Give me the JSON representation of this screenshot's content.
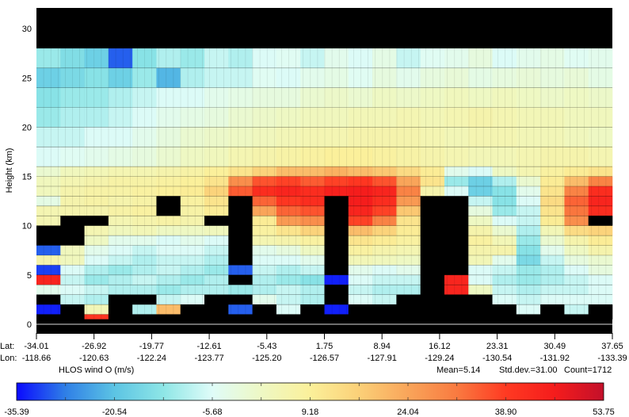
{
  "chart_data": {
    "type": "heatmap",
    "ylabel": "Height (km)",
    "ylim": [
      -0.9,
      32
    ],
    "yticks": [
      "0",
      "5",
      "10",
      "15",
      "20",
      "25",
      "30"
    ],
    "ytick_values": [
      0,
      5,
      10,
      15,
      20,
      25,
      30
    ],
    "x_row_labels": [
      "Lat:",
      "Lon:"
    ],
    "lat_ticks": [
      "-34.01",
      "-26.92",
      "-19.77",
      "-12.61",
      "-5.43",
      "1.75",
      "8.94",
      "16.12",
      "23.31",
      "30.49",
      "37.65"
    ],
    "lon_ticks": [
      "-118.66",
      "-120.63",
      "-122.24",
      "-123.77",
      "-125.20",
      "-126.57",
      "-127.91",
      "-129.24",
      "-130.54",
      "-131.92",
      "-133.39"
    ],
    "invalid_color": "#000000",
    "layer_edges_km": [
      28,
      26,
      24,
      22,
      20,
      18,
      16,
      15,
      14,
      13,
      12,
      11,
      10,
      9,
      8,
      7,
      6,
      5,
      4,
      3,
      2,
      1,
      0.5
    ],
    "values": [
      [
        -12,
        -15,
        -18,
        -30,
        -14,
        -10,
        -12,
        -8,
        -10,
        -6,
        -5,
        -8,
        -4,
        -6,
        -3,
        -8,
        -5,
        -4,
        -2,
        -6,
        -4,
        -3,
        -5,
        -4
      ],
      [
        -18,
        -16,
        -14,
        -18,
        -12,
        -22,
        -10,
        -8,
        -8,
        -5,
        -6,
        -4,
        -3,
        -5,
        -2,
        -4,
        -2,
        -1,
        -3,
        -2,
        -1,
        -2,
        -1,
        -3
      ],
      [
        -14,
        -12,
        -12,
        -10,
        -8,
        -6,
        -6,
        -4,
        -3,
        -2,
        -2,
        0,
        1,
        0,
        2,
        1,
        2,
        3,
        2,
        3,
        2,
        1,
        2,
        1
      ],
      [
        -12,
        -10,
        -10,
        -8,
        -6,
        -4,
        -3,
        -2,
        0,
        1,
        2,
        3,
        3,
        4,
        4,
        5,
        4,
        5,
        6,
        5,
        4,
        4,
        3,
        3
      ],
      [
        -8,
        -8,
        -6,
        -6,
        -4,
        -2,
        0,
        1,
        2,
        3,
        4,
        5,
        5,
        6,
        6,
        6,
        5,
        4,
        5,
        5,
        4,
        4,
        3,
        2
      ],
      [
        -6,
        -5,
        -4,
        -3,
        -2,
        0,
        2,
        3,
        5,
        6,
        7,
        8,
        9,
        9,
        8,
        7,
        6,
        5,
        4,
        4,
        5,
        6,
        6,
        5
      ],
      [
        0,
        3,
        4,
        5,
        5,
        6,
        7,
        9,
        12,
        16,
        20,
        20,
        22,
        20,
        18,
        14,
        10,
        -4,
        -6,
        2,
        5,
        8,
        10,
        12
      ],
      [
        3,
        5,
        6,
        7,
        7,
        8,
        9,
        12,
        28,
        36,
        38,
        35,
        38,
        40,
        36,
        24,
        12,
        -12,
        -18,
        -10,
        0,
        10,
        20,
        30
      ],
      [
        3,
        6,
        7,
        7,
        8,
        9,
        10,
        16,
        35,
        42,
        44,
        42,
        45,
        46,
        44,
        30,
        6,
        -6,
        -18,
        -14,
        -4,
        12,
        30,
        42
      ],
      [
        -3,
        6,
        7,
        6,
        7,
        null,
        8,
        12,
        null,
        34,
        40,
        42,
        null,
        46,
        42,
        26,
        null,
        null,
        -8,
        -14,
        -6,
        14,
        34,
        44
      ],
      [
        5,
        6,
        6,
        7,
        8,
        null,
        7,
        10,
        null,
        24,
        34,
        36,
        null,
        44,
        38,
        18,
        null,
        null,
        -2,
        -12,
        -8,
        12,
        32,
        42
      ],
      [
        5,
        null,
        null,
        5,
        6,
        7,
        6,
        null,
        null,
        10,
        26,
        28,
        null,
        38,
        30,
        12,
        null,
        null,
        2,
        -6,
        -8,
        10,
        28,
        null
      ],
      [
        null,
        null,
        5,
        3,
        4,
        2,
        2,
        3,
        null,
        8,
        12,
        16,
        null,
        20,
        16,
        10,
        null,
        null,
        6,
        0,
        -10,
        4,
        14,
        16
      ],
      [
        null,
        null,
        2,
        -4,
        -4,
        -6,
        -4,
        -6,
        null,
        5,
        6,
        8,
        null,
        12,
        10,
        8,
        null,
        null,
        8,
        4,
        -12,
        0,
        6,
        10
      ],
      [
        -30,
        3,
        -4,
        -6,
        -8,
        -6,
        -6,
        -8,
        null,
        -4,
        -2,
        2,
        null,
        8,
        6,
        5,
        null,
        null,
        6,
        6,
        -14,
        -4,
        2,
        6
      ],
      [
        6,
        3,
        -6,
        -8,
        -10,
        -8,
        -8,
        -10,
        null,
        -6,
        -6,
        -4,
        null,
        4,
        3,
        2,
        null,
        null,
        4,
        -4,
        -16,
        -8,
        -2,
        0
      ],
      [
        -32,
        -6,
        -10,
        -12,
        -10,
        -8,
        -10,
        -12,
        -30,
        -8,
        -10,
        -8,
        null,
        -4,
        -6,
        -4,
        null,
        null,
        -6,
        -8,
        -12,
        -10,
        -6,
        -2
      ],
      [
        44,
        -8,
        -12,
        -10,
        -8,
        -10,
        -12,
        -10,
        null,
        -10,
        -12,
        -14,
        -34,
        -6,
        -8,
        -8,
        null,
        44,
        -6,
        -10,
        -12,
        -10,
        -8,
        -6
      ],
      [
        -4,
        -6,
        -8,
        -10,
        -10,
        -12,
        -10,
        -10,
        -12,
        -10,
        -8,
        -10,
        null,
        -8,
        -10,
        -10,
        null,
        44,
        2,
        -8,
        -10,
        -8,
        -8,
        -6
      ],
      [
        null,
        -8,
        -10,
        null,
        null,
        -8,
        -6,
        null,
        null,
        -4,
        -8,
        -10,
        null,
        -6,
        -8,
        null,
        null,
        null,
        null,
        -6,
        -8,
        -6,
        -6,
        -6
      ],
      [
        -34,
        null,
        4,
        null,
        -10,
        20,
        null,
        null,
        -30,
        null,
        -6,
        null,
        -34,
        null,
        null,
        null,
        null,
        null,
        null,
        null,
        -6,
        null,
        -8,
        null
      ],
      [
        null,
        null,
        40,
        null,
        null,
        null,
        null,
        null,
        null,
        null,
        null,
        null,
        null,
        null,
        null,
        null,
        null,
        null,
        null,
        null,
        null,
        null,
        null,
        null
      ]
    ],
    "colorbar": {
      "label": "HLOS wind O (m/s)",
      "range": [
        -35.39,
        53.75
      ],
      "tick_labels": [
        "-35.39",
        "-20.54",
        "-5.68",
        "9.18",
        "24.04",
        "38.90",
        "53.75"
      ],
      "colors": [
        [
          -35.39,
          "#0a0aff"
        ],
        [
          -28.0,
          "#2f7fe6"
        ],
        [
          -20.54,
          "#5cc4e4"
        ],
        [
          -13.11,
          "#8ee6e6"
        ],
        [
          -5.68,
          "#dffcf8"
        ],
        [
          1.75,
          "#eef8c4"
        ],
        [
          9.18,
          "#fbf09a"
        ],
        [
          16.6,
          "#fbd078"
        ],
        [
          24.04,
          "#f9a55a"
        ],
        [
          31.5,
          "#f97a40"
        ],
        [
          38.9,
          "#ff3a22"
        ],
        [
          46.3,
          "#f51c1c"
        ],
        [
          53.75,
          "#c3102a"
        ]
      ]
    },
    "stats": {
      "mean": "Mean=5.14",
      "std": "Std.dev.=31.00",
      "count": "Count=1712"
    }
  }
}
